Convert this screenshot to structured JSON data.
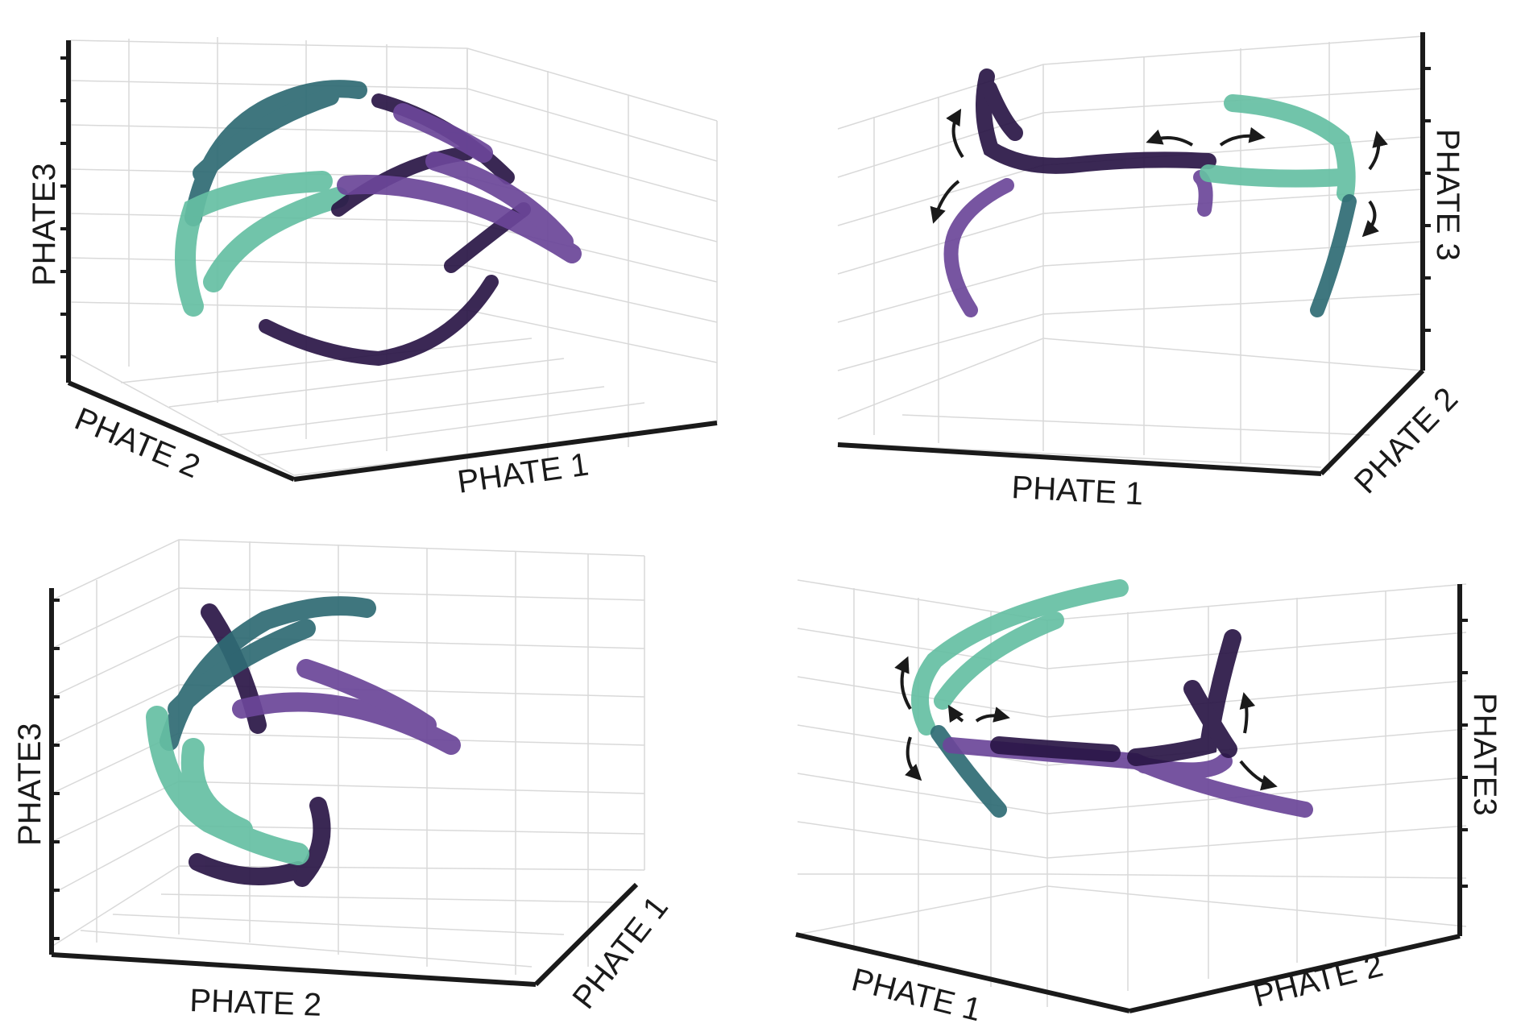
{
  "colors": {
    "dark": "#2a1646",
    "purple": "#6b4699",
    "teal_dark": "#2f6b74",
    "teal_light": "#66bfa3",
    "axis": "#1a1a1a",
    "grid": "#d9d9d9"
  },
  "chart_data": [
    {
      "type": "scatter",
      "view": "3d",
      "xlabel": "PHATE 1",
      "ylabel": "PHATE 2",
      "zlabel": "PHATE3",
      "series": [
        {
          "color_key": "dark",
          "shape": "ring around lower half"
        },
        {
          "color_key": "purple",
          "shape": "wedge to the right"
        },
        {
          "color_key": "teal_dark",
          "shape": "upper arc"
        },
        {
          "color_key": "teal_light",
          "shape": "left band"
        }
      ]
    },
    {
      "type": "scatter",
      "view": "3d",
      "xlabel": "PHATE 1",
      "ylabel": "PHATE 2",
      "zlabel": "PHATE 3",
      "annotations": [
        "branch arrows"
      ],
      "series": [
        {
          "color_key": "dark",
          "shape": "left spike and central bridge"
        },
        {
          "color_key": "purple",
          "shape": "left lower branch"
        },
        {
          "color_key": "teal_dark",
          "shape": "right lower branch"
        },
        {
          "color_key": "teal_light",
          "shape": "right upper branch"
        }
      ]
    },
    {
      "type": "scatter",
      "view": "3d",
      "xlabel": "PHATE 2",
      "ylabel": "PHATE 1",
      "zlabel": "PHATE3",
      "series": [
        {
          "color_key": "dark",
          "shape": "lower cluster"
        },
        {
          "color_key": "purple",
          "shape": "wedge to the right"
        },
        {
          "color_key": "teal_dark",
          "shape": "upper arc"
        },
        {
          "color_key": "teal_light",
          "shape": "left band"
        }
      ]
    },
    {
      "type": "scatter",
      "view": "3d",
      "xlabel": "PHATE 1",
      "ylabel": "PHATE 2",
      "zlabel": "PHATE3",
      "annotations": [
        "branch arrows"
      ],
      "series": [
        {
          "color_key": "dark",
          "shape": "right spike"
        },
        {
          "color_key": "purple",
          "shape": "bridge and right lower branch"
        },
        {
          "color_key": "teal_dark",
          "shape": "left lower branch"
        },
        {
          "color_key": "teal_light",
          "shape": "left upper arc"
        }
      ]
    }
  ]
}
